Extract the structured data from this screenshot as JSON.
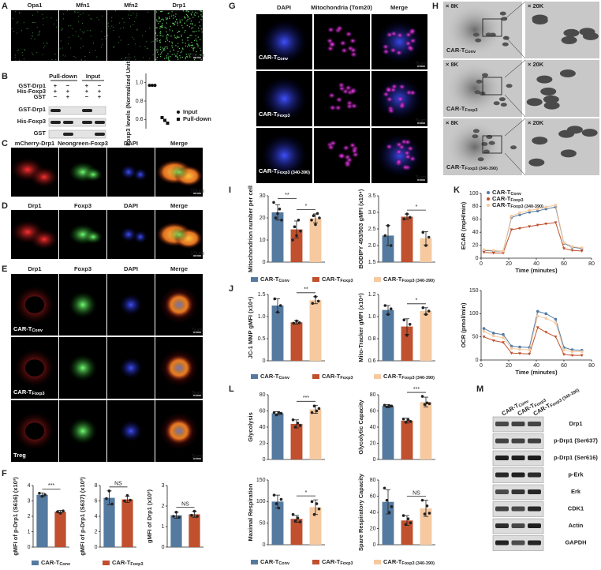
{
  "figure": {
    "groups": [
      {
        "name": "CAR-T",
        "sub": "Conv",
        "color": "#557aa0"
      },
      {
        "name": "CAR-T",
        "sub": "Foxp3",
        "color": "#c0502e"
      },
      {
        "name": "CAR-T",
        "sub": "Foxp3 (340-390)",
        "color": "#f6c9a0"
      }
    ],
    "panels": {
      "A": {
        "letter": "A",
        "columns": [
          "Opa1",
          "Mfn1",
          "Mfn2",
          "Drp1"
        ],
        "scale": "50μm"
      },
      "B": {
        "letter": "B",
        "header": [
          "Pull-down",
          "Input"
        ],
        "rows": [
          {
            "label": "GST-Drp1",
            "signs": [
              "+",
              "−",
              "+",
              "−"
            ]
          },
          {
            "label": "His-Foxp3",
            "signs": [
              "+",
              "+",
              "+",
              "+"
            ]
          },
          {
            "label": "GST",
            "signs": [
              "−",
              "+",
              "−",
              "+"
            ]
          }
        ],
        "blots": [
          "GST-Drp1",
          "His-Foxp3",
          "GST"
        ],
        "chart": {
          "type": "scatter",
          "ylabel": "Foxp3 levels (Normalized Units)",
          "ylim": [
            0.5,
            1.1
          ],
          "yticks": [
            0.6,
            0.8,
            {
              "value": 1,
              "label": "1.0"
            }
          ],
          "series": [
            {
              "name": "Input",
              "marker": "circle",
              "values": [
                0.97,
                0.97,
                0.97
              ]
            },
            {
              "name": "Pull-down",
              "marker": "square",
              "values": [
                0.62,
                0.59,
                0.56
              ]
            }
          ]
        }
      },
      "C": {
        "letter": "C",
        "columns": [
          "mCherry-Drp1",
          "Neongreen-Foxp3",
          "DAPI",
          "Merge"
        ],
        "scale": "10μm"
      },
      "D": {
        "letter": "D",
        "columns": [
          "Drp1",
          "Foxp3",
          "DAPI",
          "Merge"
        ],
        "scale": "10μm"
      },
      "E": {
        "letter": "E",
        "columns": [
          "Drp1",
          "Foxp3",
          "DAPI",
          "Merge"
        ],
        "rows": [
          {
            "name": "CAR-T",
            "sub": "Conv"
          },
          {
            "name": "CAR-T",
            "sub": "Foxp3"
          },
          {
            "name": "Treg"
          }
        ],
        "scale": "5μm"
      },
      "F": {
        "letter": "F",
        "charts": [
          {
            "type": "bar",
            "ylabel": "gMFI of p-Drp1 (S616) (x10³)",
            "ylim": [
              0,
              4
            ],
            "yticks": [
              0,
              1,
              2,
              3,
              4
            ],
            "values": [
              3.4,
              2.3
            ],
            "errors": [
              0.12,
              0.08
            ],
            "points": [
              [
                3.5,
                3.3,
                3.4
              ],
              [
                2.3,
                2.2,
                2.35
              ]
            ],
            "comparisons": [
              {
                "groups": [
                  0,
                  1
                ],
                "label": "***"
              }
            ]
          },
          {
            "type": "bar",
            "ylabel": "gMFI of p-Drp1 (S637) (x10³)",
            "ylim": [
              0,
              8
            ],
            "yticks": [
              0,
              2,
              4,
              6,
              8
            ],
            "values": [
              6.4,
              6.2
            ],
            "errors": [
              0.9,
              0.4
            ],
            "points": [
              [
                6.3,
                7.3,
                5.6
              ],
              [
                6,
                6.7,
                6.1
              ]
            ],
            "comparisons": [
              {
                "groups": [
                  0,
                  1
                ],
                "label": "NS"
              }
            ]
          },
          {
            "type": "bar",
            "ylabel": "gMFI of Drp1 (x10³)",
            "ylim": [
              0,
              3
            ],
            "yticks": [
              0,
              1,
              2,
              3
            ],
            "values": [
              1.55,
              1.6
            ],
            "errors": [
              0.15,
              0.15
            ],
            "points": [
              [
                1.5,
                1.7,
                1.45
              ],
              [
                1.55,
                1.75,
                1.5
              ]
            ],
            "comparisons": [
              {
                "groups": [
                  0,
                  1
                ],
                "label": "NS"
              }
            ]
          }
        ]
      },
      "G": {
        "letter": "G",
        "columns": [
          "DAPI",
          "Mitochondria (Tom20)",
          "Merge"
        ],
        "rows": [
          {
            "name": "CAR-T",
            "sub": "Conv"
          },
          {
            "name": "CAR-T",
            "sub": "Foxp3"
          },
          {
            "name": "CAR-T",
            "sub": "Foxp3 (340-390)"
          }
        ],
        "scale": "5μm"
      },
      "H": {
        "letter": "H",
        "magnifications": [
          "× 8K",
          "× 20K"
        ],
        "rows": [
          {
            "name": "CAR-T",
            "sub": "Conv"
          },
          {
            "name": "CAR-T",
            "sub": "Foxp3"
          },
          {
            "name": "CAR-T",
            "sub": "Foxp3 (340-390)"
          }
        ]
      },
      "I": {
        "letter": "I",
        "charts": [
          {
            "type": "bar",
            "ylabel": "Mitochondrion number per cell",
            "ylim": [
              0,
              30
            ],
            "yticks": [
              0,
              10,
              20,
              30
            ],
            "values": [
              22.5,
              14.8,
              19.8
            ],
            "errors": [
              3.5,
              3.8,
              2
            ],
            "points": [
              [
                27,
                20,
                22,
                24,
                19
              ],
              [
                10,
                16,
                12,
                19,
                14
              ],
              [
                19,
                21,
                17,
                22,
                20
              ]
            ],
            "comparisons": [
              {
                "groups": [
                  0,
                  1
                ],
                "label": "**"
              },
              {
                "groups": [
                  1,
                  2
                ],
                "label": "*"
              }
            ]
          },
          {
            "type": "bar",
            "ylabel": "BODIPY 493/503 gMFI (x10⁴)",
            "ylim": [
              1.5,
              3.5
            ],
            "yticks": [
              1.5,
              {
                "value": 2,
                "label": "2.0"
              },
              2.5,
              {
                "value": 3,
                "label": "3.0"
              },
              3.5
            ],
            "values": [
              2.3,
              2.87,
              2.22
            ],
            "errors": [
              0.3,
              0.08,
              0.2
            ],
            "points": [
              [
                2.3,
                2.6,
                2
              ],
              [
                2.8,
                2.95,
                2.85
              ],
              [
                2.4,
                2,
                2.25
              ]
            ],
            "comparisons": [
              {
                "groups": [
                  1,
                  2
                ],
                "label": "*"
              }
            ]
          }
        ]
      },
      "J": {
        "letter": "J",
        "charts": [
          {
            "type": "bar",
            "ylabel": "JC-1 MMP gMFI (x10⁴)",
            "ylim": [
              0,
              1.5
            ],
            "yticks": [
              0,
              0.5,
              {
                "value": 1,
                "label": "1.0"
              },
              1.5
            ],
            "values": [
              1.25,
              0.87,
              1.37
            ],
            "errors": [
              0.15,
              0.04,
              0.08
            ],
            "points": [
              [
                1.4,
                1.1,
                1.25
              ],
              [
                0.85,
                0.9,
                0.86
              ],
              [
                1.3,
                1.45,
                1.35
              ]
            ],
            "comparisons": [
              {
                "groups": [
                  1,
                  2
                ],
                "label": "**"
              }
            ]
          },
          {
            "type": "bar",
            "ylabel": "Mito-Tracker gMFI (x10⁴)",
            "ylim": [
              0.6,
              1.2
            ],
            "yticks": [
              0.6,
              0.8,
              {
                "value": 1,
                "label": "1.0"
              },
              1.2
            ],
            "values": [
              1.06,
              0.91,
              1.05
            ],
            "errors": [
              0.04,
              0.07,
              0.03
            ],
            "points": [
              [
                1.1,
                1.02,
                1.07
              ],
              [
                0.97,
                0.83,
                0.93
              ],
              [
                1.08,
                1.02,
                1.05
              ]
            ],
            "comparisons": [
              {
                "groups": [
                  1,
                  2
                ],
                "label": "*"
              }
            ]
          }
        ]
      },
      "K": {
        "letter": "K",
        "xlabel": "Time (minutes)",
        "charts": [
          {
            "type": "line",
            "ylabel": "ECAR (mpH/min)",
            "xlim": [
              0,
              80
            ],
            "xticks": [
              0,
              20,
              40,
              60,
              80
            ],
            "ylim": [
              0,
              100
            ],
            "yticks": [
              0,
              20,
              40,
              60,
              80,
              100
            ],
            "x": [
              2,
              9,
              16,
              22,
              28,
              35,
              41,
              47,
              54,
              60,
              66,
              73
            ],
            "series": [
              [
                12,
                11,
                11,
                63,
                67,
                71,
                73,
                76,
                79,
                23,
                17,
                15
              ],
              [
                9,
                8,
                8,
                44,
                46,
                49,
                51,
                53,
                55,
                15,
                12,
                11
              ],
              [
                13,
                12,
                11,
                65,
                70,
                74,
                76,
                79,
                82,
                24,
                18,
                16
              ]
            ]
          },
          {
            "type": "line",
            "ylabel": "OCR (pmol/min)",
            "xlim": [
              0,
              80
            ],
            "xticks": [
              0,
              20,
              40,
              60,
              80
            ],
            "ylim": [
              0,
              150
            ],
            "yticks": [
              0,
              50,
              100,
              150
            ],
            "x": [
              2,
              9,
              16,
              22,
              28,
              35,
              41,
              47,
              54,
              60,
              66,
              73
            ],
            "series": [
              [
                68,
                58,
                55,
                30,
                28,
                27,
                105,
                100,
                88,
                27,
                22,
                21
              ],
              [
                50,
                42,
                38,
                15,
                14,
                13,
                70,
                60,
                50,
                12,
                10,
                10
              ],
              [
                62,
                52,
                48,
                25,
                23,
                22,
                95,
                90,
                80,
                22,
                18,
                18
              ]
            ]
          }
        ]
      },
      "L": {
        "letter": "L",
        "charts": [
          {
            "type": "bar",
            "ylabel": "Glycolysis",
            "ylim": [
              0,
              80
            ],
            "yticks": [
              0,
              20,
              40,
              60,
              80
            ],
            "values": [
              57,
              44,
              62
            ],
            "errors": [
              2,
              5,
              5
            ],
            "points": [
              [
                58,
                55,
                58,
                57
              ],
              [
                49,
                40,
                45,
                42
              ],
              [
                58,
                66,
                60,
                63
              ]
            ],
            "comparisons": [
              {
                "groups": [
                  1,
                  2
                ],
                "label": "***"
              }
            ]
          },
          {
            "type": "bar",
            "ylabel": "Glycolytic Capacity",
            "ylim": [
              0,
              80
            ],
            "yticks": [
              0,
              20,
              40,
              60,
              80
            ],
            "values": [
              66,
              48,
              71
            ],
            "errors": [
              2,
              3,
              6
            ],
            "points": [
              [
                67,
                65,
                66,
                66
              ],
              [
                50,
                46,
                49,
                47
              ],
              [
                78,
                68,
                70,
                69
              ]
            ],
            "comparisons": [
              {
                "groups": [
                  1,
                  2
                ],
                "label": "***"
              }
            ]
          },
          {
            "type": "bar",
            "ylabel": "Maximal Respiration",
            "ylim": [
              0,
              150
            ],
            "yticks": [
              0,
              50,
              100,
              150
            ],
            "values": [
              100,
              60,
              87
            ],
            "errors": [
              15,
              8,
              17
            ],
            "points": [
              [
                115,
                95,
                85,
                105
              ],
              [
                70,
                55,
                62,
                53
              ],
              [
                100,
                70,
                95,
                83
              ]
            ],
            "comparisons": [
              {
                "groups": [
                  1,
                  2
                ],
                "label": "*"
              }
            ]
          },
          {
            "type": "bar",
            "ylabel": "Spare Respiratory Capacity",
            "ylim": [
              0,
              80
            ],
            "yticks": [
              0,
              20,
              40,
              60,
              80
            ],
            "values": [
              53,
              30,
              45
            ],
            "errors": [
              15,
              6,
              10
            ],
            "points": [
              [
                70,
                55,
                40,
                47
              ],
              [
                36,
                25,
                32,
                27
              ],
              [
                55,
                38,
                48,
                39
              ]
            ],
            "comparisons": [
              {
                "groups": [
                  1,
                  2
                ],
                "label": "NS"
              }
            ]
          }
        ]
      },
      "M": {
        "letter": "M",
        "blots": [
          "Drp1",
          "p-Drp1 (Ser637)",
          "p-Drp1 (Ser616)",
          "p-Erk",
          "Erk",
          "CDK1",
          "Actin",
          "GAPDH"
        ]
      }
    }
  }
}
